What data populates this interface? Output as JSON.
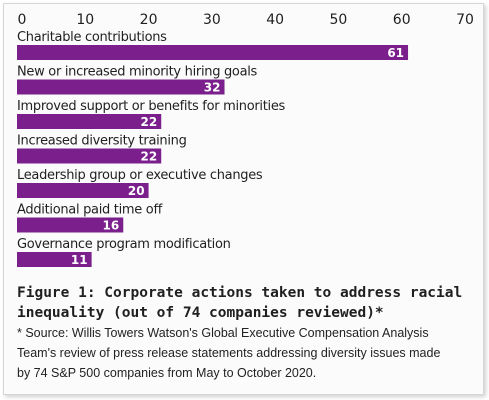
{
  "chart_data": {
    "type": "bar",
    "orientation": "horizontal",
    "categories": [
      "Charitable contributions",
      "New or increased minority hiring goals",
      "Improved support or benefits for minorities",
      "Increased diversity training",
      "Leadership group or executive changes",
      "Additional paid time off",
      "Governance program modification"
    ],
    "values": [
      61,
      32,
      22,
      22,
      20,
      16,
      11
    ],
    "data_labels": [
      "61",
      "32",
      "22",
      "22",
      "20",
      "16",
      "11"
    ],
    "xlim": [
      0,
      70
    ],
    "x_ticks": [
      "0",
      "10",
      "20",
      "30",
      "40",
      "50",
      "60",
      "70"
    ],
    "x_axis_position": "top",
    "bar_color": "#7a1f8c",
    "grid": false,
    "legend": "none"
  },
  "caption": {
    "line1": "Figure 1: Corporate actions taken to address racial",
    "line2": "inequality (out of 74 companies reviewed)*"
  },
  "source": {
    "line1": "* Source: Willis Towers Watson's Global Executive Compensation Analysis",
    "line2": "Team's review of press release statements addressing diversity issues made",
    "line3": "by 74 S&P 500 companies from May to October 2020."
  }
}
